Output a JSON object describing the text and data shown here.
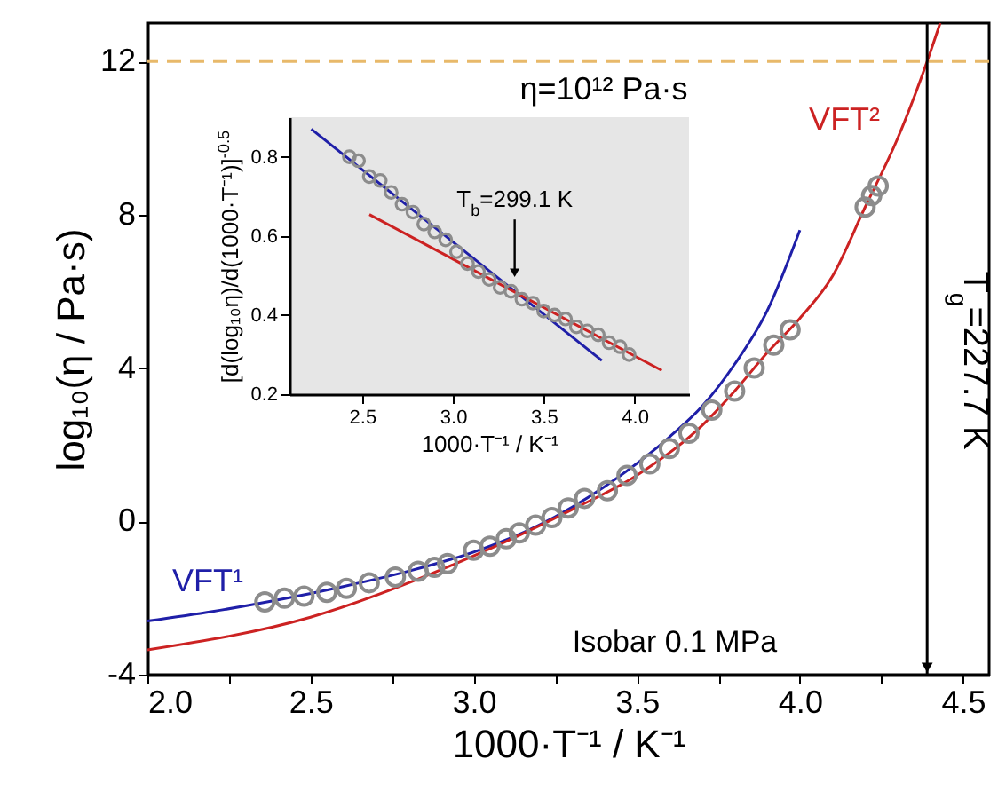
{
  "chart_data": [
    {
      "type": "scatter",
      "xlabel": "1000·T⁻¹ / K⁻¹",
      "ylabel": "log₁₀(η / Pa·s)",
      "xlim": [
        2.0,
        4.58
      ],
      "xticks": [
        {
          "value": 2,
          "label": "2.0"
        },
        {
          "value": 2.25,
          "label": null
        },
        2.5,
        {
          "value": 2.75,
          "label": null
        },
        {
          "value": 3,
          "label": "3.0"
        },
        {
          "value": 3.25,
          "label": null
        },
        3.5,
        {
          "value": 3.75,
          "label": null
        },
        {
          "value": 4,
          "label": "4.0"
        },
        {
          "value": 4.25,
          "label": null
        },
        4.5
      ],
      "ylim": [
        -4,
        13
      ],
      "yticks": [
        -4,
        0,
        4,
        8,
        12
      ],
      "series": [
        {
          "type": "scatter",
          "marker": "circle",
          "color": "#8c8c8c",
          "x": [
            2.36,
            2.42,
            2.48,
            2.55,
            2.61,
            2.68,
            2.76,
            2.83,
            2.88,
            2.92,
            3.0,
            3.05,
            3.1,
            3.14,
            3.19,
            3.24,
            3.29,
            3.34,
            3.41,
            3.47,
            3.54,
            3.6,
            3.66,
            3.73,
            3.8,
            3.86,
            3.92,
            3.97,
            4.2,
            4.22,
            4.24
          ],
          "values": [
            -2.1,
            -2.0,
            -1.95,
            -1.85,
            -1.75,
            -1.6,
            -1.45,
            -1.3,
            -1.2,
            -1.1,
            -0.75,
            -0.65,
            -0.45,
            -0.3,
            -0.1,
            0.1,
            0.35,
            0.6,
            0.8,
            1.2,
            1.5,
            1.9,
            2.3,
            2.9,
            3.4,
            4.0,
            4.6,
            5.0,
            8.2,
            8.5,
            8.75
          ]
        },
        {
          "type": "line",
          "name": "VFT¹",
          "color": "#1f1fa8",
          "x": [
            2.0,
            2.2,
            2.4,
            2.6,
            2.8,
            3.0,
            3.2,
            3.4,
            3.6,
            3.7,
            3.8,
            3.9,
            4.0
          ],
          "values": [
            -2.6,
            -2.35,
            -2.05,
            -1.7,
            -1.3,
            -0.8,
            -0.1,
            0.9,
            2.2,
            3.0,
            4.1,
            5.5,
            7.6
          ]
        },
        {
          "type": "line",
          "name": "VFT²",
          "color": "#cc2222",
          "x": [
            2.0,
            2.5,
            3.0,
            3.3,
            3.5,
            3.7,
            3.8,
            3.9,
            4.0,
            4.1,
            4.2,
            4.3,
            4.39,
            4.43
          ],
          "values": [
            -3.35,
            -2.5,
            -0.9,
            0.3,
            1.2,
            2.5,
            3.4,
            4.4,
            5.3,
            6.4,
            8.2,
            10.0,
            12.0,
            13.0
          ]
        }
      ],
      "ref_lines": [
        {
          "axis": "y",
          "value": 12,
          "color": "#e8b96a",
          "line_style": "dashed"
        },
        {
          "axis": "x",
          "value": 4.39,
          "color": "#000000"
        }
      ],
      "annotations": [
        "η=10¹² Pa·s",
        "T$_{g}$=227.7 K",
        "Isobar 0.1 MPa"
      ]
    },
    {
      "type": "scatter",
      "xlabel": "1000·T⁻¹ / K⁻¹",
      "ylabel": "[d(log₁₀η)/d(1000·T⁻¹)]$^{-0.5}$",
      "xlim": [
        2.1,
        4.3
      ],
      "xticks": [
        2.5,
        {
          "value": 3,
          "label": "3.0"
        },
        3.5,
        {
          "value": 4,
          "label": "4.0"
        }
      ],
      "ylim": [
        0.2,
        0.9
      ],
      "yticks": [
        0.2,
        0.4,
        0.6,
        0.8
      ],
      "series": [
        {
          "type": "scatter",
          "marker": "circle",
          "color": "#8c8c8c",
          "x": [
            2.43,
            2.48,
            2.54,
            2.6,
            2.66,
            2.72,
            2.78,
            2.84,
            2.9,
            2.96,
            3.02,
            3.08,
            3.14,
            3.2,
            3.26,
            3.32,
            3.38,
            3.44,
            3.5,
            3.56,
            3.62,
            3.68,
            3.74,
            3.8,
            3.86,
            3.92,
            3.97
          ],
          "values": [
            0.8,
            0.79,
            0.75,
            0.74,
            0.71,
            0.68,
            0.66,
            0.63,
            0.61,
            0.59,
            0.56,
            0.53,
            0.51,
            0.49,
            0.47,
            0.46,
            0.44,
            0.43,
            0.41,
            0.4,
            0.39,
            0.37,
            0.36,
            0.35,
            0.33,
            0.32,
            0.3
          ]
        },
        {
          "type": "line",
          "color": "#1f1fa8",
          "x": [
            2.22,
            3.82
          ],
          "values": [
            0.87,
            0.285
          ]
        },
        {
          "type": "line",
          "color": "#cc2222",
          "x": [
            2.54,
            4.15
          ],
          "values": [
            0.654,
            0.26
          ]
        }
      ],
      "annotations": [
        {
          "text": "T$_{b}$=299.1 K",
          "x": 3.34,
          "y": 0.48
        }
      ]
    }
  ]
}
